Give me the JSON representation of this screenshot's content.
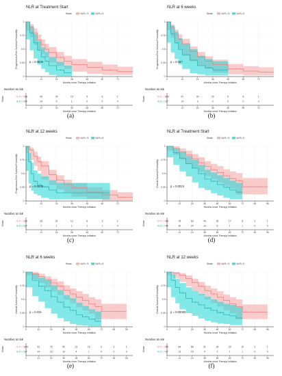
{
  "colors": {
    "low": "#f08080",
    "low_fill": "#f4a3a3",
    "high": "#2bb5b5",
    "high_fill": "#1ed6d6"
  },
  "legend_title": "Strata",
  "legend_labels": [
    "NLR < 5",
    "NLR ≥ 5"
  ],
  "risk_title": "Number at risk",
  "strata_axis": "Strata",
  "strata_labels": [
    "NLR < 5",
    "NLR ≥ 5"
  ],
  "xlabel": "Months since Therapy Initiation",
  "chart_data": [
    {
      "type": "line",
      "caption": "(a)",
      "title": "NLR at Treatment Start",
      "ylabel": "Progression-Free Survival Probability",
      "p_text": "p = 0.0029",
      "xlim": [
        0,
        84
      ],
      "ylim": [
        0,
        1
      ],
      "xticks": [
        0,
        12,
        24,
        36,
        48,
        60,
        72
      ],
      "yticks": [
        0,
        0.25,
        0.5,
        0.75,
        1
      ],
      "risk_times": [
        0,
        12,
        24,
        36,
        48,
        60,
        72
      ],
      "risk": [
        [
          88,
          53,
          25,
          15,
          9,
          6,
          1
        ],
        [
          40,
          24,
          5,
          1,
          0,
          0,
          0
        ]
      ],
      "series": [
        {
          "x": [
            0,
            3,
            6,
            9,
            12,
            15,
            18,
            24,
            30,
            36,
            48,
            60,
            72,
            84
          ],
          "y": [
            1,
            0.9,
            0.8,
            0.67,
            0.58,
            0.5,
            0.44,
            0.35,
            0.28,
            0.22,
            0.17,
            0.12,
            0.09,
            0.09
          ],
          "lo": [
            1,
            0.84,
            0.72,
            0.58,
            0.49,
            0.41,
            0.35,
            0.26,
            0.19,
            0.14,
            0.09,
            0.05,
            0.03,
            0.03
          ],
          "hi": [
            1,
            0.96,
            0.88,
            0.77,
            0.68,
            0.6,
            0.54,
            0.45,
            0.38,
            0.32,
            0.27,
            0.22,
            0.18,
            0.18
          ]
        },
        {
          "x": [
            0,
            3,
            6,
            9,
            12,
            15,
            18,
            24,
            30,
            36
          ],
          "y": [
            1,
            0.8,
            0.62,
            0.48,
            0.36,
            0.28,
            0.2,
            0.12,
            0.07,
            0.07
          ],
          "lo": [
            1,
            0.68,
            0.48,
            0.33,
            0.22,
            0.14,
            0.08,
            0.03,
            0.01,
            0.01
          ],
          "hi": [
            1,
            0.92,
            0.78,
            0.65,
            0.53,
            0.45,
            0.36,
            0.27,
            0.2,
            0.2
          ]
        }
      ]
    },
    {
      "type": "line",
      "caption": "(b)",
      "title": "NLR at 6 weeks",
      "ylabel": "Progression-Free Survival Probability",
      "p_text": "p = 0.037",
      "xlim": [
        0,
        84
      ],
      "ylim": [
        0,
        1
      ],
      "xticks": [
        0,
        12,
        24,
        36,
        48,
        60,
        72
      ],
      "yticks": [
        0,
        0.25,
        0.5,
        0.75,
        1
      ],
      "risk_times": [
        0,
        12,
        24,
        36,
        48,
        60,
        72
      ],
      "risk": [
        [
          104,
          67,
          30,
          16,
          9,
          6,
          1
        ],
        [
          27,
          14,
          3,
          2,
          0,
          0,
          0
        ]
      ],
      "series": [
        {
          "x": [
            0,
            3,
            6,
            9,
            12,
            18,
            24,
            30,
            36,
            48,
            60,
            72,
            84
          ],
          "y": [
            1,
            0.9,
            0.78,
            0.68,
            0.6,
            0.46,
            0.36,
            0.28,
            0.22,
            0.14,
            0.1,
            0.08,
            0.08
          ],
          "lo": [
            1,
            0.85,
            0.71,
            0.6,
            0.52,
            0.38,
            0.28,
            0.2,
            0.14,
            0.07,
            0.04,
            0.02,
            0.02
          ],
          "hi": [
            1,
            0.95,
            0.86,
            0.77,
            0.69,
            0.55,
            0.45,
            0.37,
            0.31,
            0.23,
            0.19,
            0.17,
            0.17
          ]
        },
        {
          "x": [
            0,
            3,
            6,
            9,
            12,
            18,
            24,
            30,
            36,
            48
          ],
          "y": [
            1,
            0.78,
            0.62,
            0.5,
            0.4,
            0.3,
            0.2,
            0.16,
            0.12,
            0.12
          ],
          "lo": [
            1,
            0.62,
            0.44,
            0.32,
            0.22,
            0.14,
            0.06,
            0.04,
            0.02,
            0.02
          ],
          "hi": [
            1,
            0.93,
            0.82,
            0.7,
            0.6,
            0.5,
            0.38,
            0.32,
            0.28,
            0.28
          ]
        }
      ]
    },
    {
      "type": "line",
      "caption": "(c)",
      "title": "NLR at 12 weeks",
      "ylabel": "Progression-Free Survival Probability",
      "p_text": "p = 0.0003",
      "xlim": [
        0,
        84
      ],
      "ylim": [
        0,
        1
      ],
      "xticks": [
        0,
        12,
        24,
        36,
        48,
        60,
        72
      ],
      "yticks": [
        0,
        0.25,
        0.5,
        0.75,
        1
      ],
      "risk_times": [
        0,
        12,
        24,
        36,
        48,
        60,
        72
      ],
      "risk": [
        [
          80,
          63,
          31,
          12,
          8,
          3,
          1
        ],
        [
          27,
          7,
          1,
          1,
          1,
          1,
          0
        ]
      ],
      "series": [
        {
          "x": [
            0,
            3,
            6,
            9,
            12,
            18,
            24,
            30,
            36,
            48,
            60,
            72,
            84
          ],
          "y": [
            1,
            0.93,
            0.82,
            0.72,
            0.64,
            0.48,
            0.38,
            0.3,
            0.24,
            0.16,
            0.11,
            0.07,
            0.07
          ],
          "lo": [
            1,
            0.88,
            0.75,
            0.64,
            0.55,
            0.39,
            0.29,
            0.21,
            0.15,
            0.08,
            0.04,
            0.01,
            0.01
          ],
          "hi": [
            1,
            0.98,
            0.9,
            0.81,
            0.73,
            0.57,
            0.47,
            0.39,
            0.33,
            0.25,
            0.2,
            0.16,
            0.16
          ]
        },
        {
          "x": [
            0,
            2,
            4,
            6,
            9,
            12,
            18,
            24,
            36,
            48,
            60,
            66
          ],
          "y": [
            1,
            0.72,
            0.5,
            0.36,
            0.3,
            0.26,
            0.2,
            0.15,
            0.15,
            0.15,
            0.15,
            0.15
          ],
          "lo": [
            1,
            0.55,
            0.32,
            0.19,
            0.13,
            0.1,
            0.06,
            0.03,
            0.03,
            0.03,
            0.03,
            0.03
          ],
          "hi": [
            1,
            0.88,
            0.7,
            0.56,
            0.5,
            0.45,
            0.38,
            0.33,
            0.33,
            0.33,
            0.33,
            0.33
          ]
        }
      ]
    },
    {
      "type": "line",
      "caption": "(d)",
      "title": "NLR at Treatment Start",
      "ylabel": "Overall Survival Probability",
      "p_text": "p = 0.0024",
      "xlim": [
        0,
        102
      ],
      "ylim": [
        0,
        1
      ],
      "xticks": [
        0,
        12,
        24,
        36,
        48,
        60,
        72,
        84,
        96
      ],
      "yticks": [
        0,
        0.25,
        0.5,
        0.75,
        1
      ],
      "risk_times": [
        0,
        12,
        24,
        36,
        48,
        60,
        72,
        84,
        96
      ],
      "risk": [
        [
          88,
          78,
          63,
          44,
          29,
          17,
          8,
          2,
          1
        ],
        [
          40,
          30,
          24,
          13,
          6,
          1,
          1,
          0,
          0
        ]
      ],
      "series": [
        {
          "x": [
            0,
            6,
            12,
            18,
            24,
            30,
            36,
            42,
            48,
            54,
            60,
            66,
            72,
            84,
            96
          ],
          "y": [
            1,
            0.96,
            0.9,
            0.84,
            0.77,
            0.7,
            0.63,
            0.57,
            0.52,
            0.46,
            0.41,
            0.37,
            0.26,
            0.26,
            0.26
          ],
          "lo": [
            1,
            0.92,
            0.84,
            0.76,
            0.68,
            0.6,
            0.53,
            0.46,
            0.4,
            0.34,
            0.28,
            0.23,
            0.12,
            0.12,
            0.12
          ],
          "hi": [
            1,
            1,
            0.96,
            0.92,
            0.86,
            0.8,
            0.73,
            0.68,
            0.64,
            0.58,
            0.54,
            0.51,
            0.42,
            0.42,
            0.42
          ]
        },
        {
          "x": [
            0,
            6,
            12,
            18,
            24,
            30,
            36,
            42,
            48,
            54,
            60,
            66,
            72
          ],
          "y": [
            1,
            0.88,
            0.78,
            0.68,
            0.6,
            0.5,
            0.4,
            0.36,
            0.3,
            0.25,
            0.2,
            0.16,
            0.16
          ],
          "lo": [
            1,
            0.8,
            0.66,
            0.54,
            0.45,
            0.34,
            0.24,
            0.2,
            0.14,
            0.1,
            0.06,
            0.03,
            0.03
          ],
          "hi": [
            1,
            0.96,
            0.9,
            0.82,
            0.75,
            0.66,
            0.57,
            0.52,
            0.47,
            0.42,
            0.37,
            0.33,
            0.33
          ]
        }
      ]
    },
    {
      "type": "line",
      "caption": "(e)",
      "title": "NLR at 6 weeks",
      "ylabel": "Overall Survival Probability",
      "p_text": "p = 0.015",
      "xlim": [
        0,
        102
      ],
      "ylim": [
        0,
        1
      ],
      "xticks": [
        0,
        12,
        24,
        36,
        48,
        60,
        72,
        84,
        96
      ],
      "yticks": [
        0,
        0.25,
        0.5,
        0.75,
        1
      ],
      "risk_times": [
        0,
        12,
        24,
        36,
        48,
        60,
        72,
        84,
        96
      ],
      "risk": [
        [
          104,
          91,
          75,
          50,
          31,
          19,
          9,
          2,
          1
        ],
        [
          27,
          24,
          16,
          10,
          4,
          1,
          0,
          0,
          0
        ]
      ],
      "series": [
        {
          "x": [
            0,
            6,
            12,
            18,
            24,
            30,
            36,
            42,
            48,
            54,
            60,
            66,
            72,
            84,
            96
          ],
          "y": [
            1,
            0.97,
            0.92,
            0.86,
            0.8,
            0.74,
            0.67,
            0.6,
            0.54,
            0.48,
            0.42,
            0.37,
            0.28,
            0.28,
            0.28
          ],
          "lo": [
            1,
            0.94,
            0.87,
            0.8,
            0.72,
            0.65,
            0.58,
            0.5,
            0.43,
            0.36,
            0.3,
            0.24,
            0.14,
            0.14,
            0.14
          ],
          "hi": [
            1,
            1,
            0.97,
            0.92,
            0.88,
            0.83,
            0.76,
            0.7,
            0.65,
            0.6,
            0.54,
            0.5,
            0.42,
            0.42,
            0.42
          ]
        },
        {
          "x": [
            0,
            6,
            12,
            18,
            24,
            30,
            36,
            42,
            48,
            54,
            60,
            66,
            72
          ],
          "y": [
            1,
            0.85,
            0.74,
            0.66,
            0.55,
            0.45,
            0.36,
            0.3,
            0.22,
            0.18,
            0.14,
            0.1,
            0.1
          ],
          "lo": [
            1,
            0.72,
            0.56,
            0.46,
            0.34,
            0.24,
            0.16,
            0.1,
            0.05,
            0.03,
            0.02,
            0.01,
            0.01
          ],
          "hi": [
            1,
            0.97,
            0.9,
            0.85,
            0.76,
            0.67,
            0.58,
            0.52,
            0.44,
            0.38,
            0.32,
            0.28,
            0.28
          ]
        }
      ]
    },
    {
      "type": "line",
      "caption": "(f)",
      "title": "NLR at 12 weeks",
      "ylabel": "Overall Survival Probability",
      "p_text": "p = 0.00083",
      "xlim": [
        0,
        102
      ],
      "ylim": [
        0,
        1
      ],
      "xticks": [
        0,
        12,
        24,
        36,
        48,
        60,
        72,
        84,
        96
      ],
      "yticks": [
        0,
        0.25,
        0.5,
        0.75,
        1
      ],
      "risk_times": [
        0,
        12,
        24,
        36,
        48,
        60,
        72,
        84,
        96
      ],
      "risk": [
        [
          89,
          84,
          68,
          51,
          34,
          20,
          10,
          2,
          1
        ],
        [
          27,
          13,
          16,
          4,
          2,
          1,
          1,
          0,
          0
        ]
      ],
      "series": [
        {
          "x": [
            0,
            6,
            12,
            18,
            24,
            30,
            36,
            42,
            48,
            54,
            60,
            66,
            72,
            84,
            96
          ],
          "y": [
            1,
            0.98,
            0.94,
            0.88,
            0.81,
            0.74,
            0.66,
            0.6,
            0.54,
            0.48,
            0.42,
            0.37,
            0.27,
            0.27,
            0.27
          ],
          "lo": [
            1,
            0.95,
            0.89,
            0.82,
            0.74,
            0.66,
            0.57,
            0.5,
            0.43,
            0.37,
            0.3,
            0.25,
            0.14,
            0.14,
            0.14
          ],
          "hi": [
            1,
            1,
            0.98,
            0.94,
            0.88,
            0.82,
            0.75,
            0.7,
            0.65,
            0.59,
            0.54,
            0.5,
            0.41,
            0.41,
            0.41
          ]
        },
        {
          "x": [
            0,
            4,
            8,
            12,
            18,
            24,
            30,
            36,
            42,
            48,
            54,
            60,
            66,
            72
          ],
          "y": [
            1,
            0.85,
            0.72,
            0.62,
            0.52,
            0.45,
            0.4,
            0.34,
            0.3,
            0.26,
            0.22,
            0.2,
            0.16,
            0.16
          ],
          "lo": [
            1,
            0.72,
            0.54,
            0.43,
            0.32,
            0.25,
            0.2,
            0.15,
            0.11,
            0.08,
            0.06,
            0.05,
            0.03,
            0.03
          ],
          "hi": [
            1,
            0.96,
            0.88,
            0.8,
            0.72,
            0.66,
            0.6,
            0.55,
            0.5,
            0.46,
            0.42,
            0.4,
            0.36,
            0.36
          ]
        }
      ]
    }
  ]
}
